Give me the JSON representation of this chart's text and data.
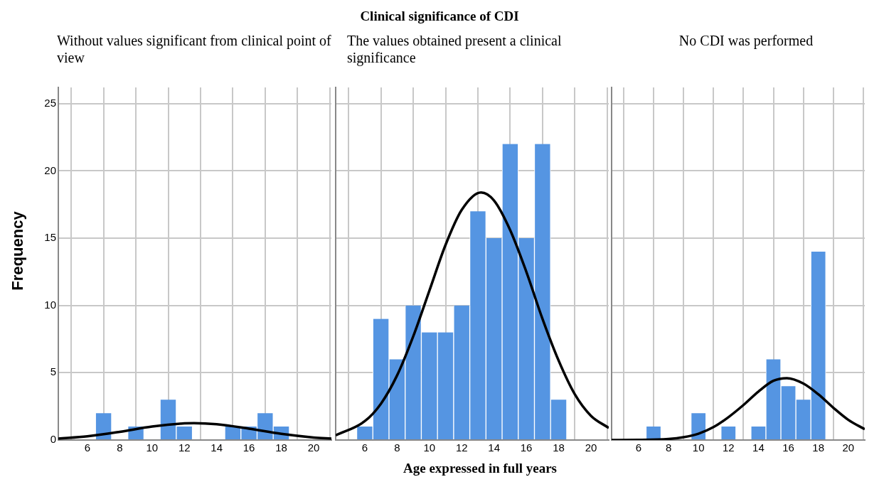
{
  "chart_data": [
    {
      "type": "histogram",
      "subtitle": "Without values significant from clinical point of view",
      "ylabel": "Frequency",
      "bins": [
        5.5,
        6.5,
        7.5,
        8.5,
        9.5,
        10.5,
        11.5,
        12.5,
        13.5,
        14.5,
        15.5,
        16.5,
        17.5,
        18.5
      ],
      "xlim": [
        4.2,
        21.1
      ],
      "xticks": [
        6,
        8,
        10,
        12,
        14,
        16,
        18,
        20
      ],
      "ylim": [
        0,
        26.2
      ],
      "yticks": [
        0,
        5,
        10,
        15,
        20,
        25
      ],
      "grid": true,
      "series": [
        {
          "color": "#5595e2",
          "values": [
            0,
            2,
            0,
            1,
            0,
            3,
            1,
            0,
            0,
            1,
            1,
            2,
            1
          ]
        },
        {
          "type": "line",
          "color": "#000000",
          "x": [
            4.2,
            6,
            8,
            10,
            12,
            12.6,
            14,
            16,
            18,
            20,
            21.1
          ],
          "values": [
            0.11,
            0.28,
            0.61,
            1.0,
            1.24,
            1.26,
            1.18,
            0.85,
            0.46,
            0.19,
            0.1
          ]
        }
      ]
    },
    {
      "type": "histogram",
      "title": "Clinical significance of CDI",
      "subtitle": "The values obtained present a clinical significance",
      "xlabel": "Age expressed in full years",
      "bins": [
        5.5,
        6.5,
        7.5,
        8.5,
        9.5,
        10.5,
        11.5,
        12.5,
        13.5,
        14.5,
        15.5,
        16.5,
        17.5,
        18.5
      ],
      "xlim": [
        4.2,
        21.1
      ],
      "xticks": [
        6,
        8,
        10,
        12,
        14,
        16,
        18,
        20
      ],
      "ylim": [
        0,
        26.2
      ],
      "yticks": [
        0,
        5,
        10,
        15,
        20,
        25
      ],
      "grid": true,
      "tick_labels": "x",
      "series": [
        {
          "color": "#5595e2",
          "values": [
            1,
            9,
            6,
            10,
            8,
            8,
            10,
            17,
            15,
            22,
            15,
            22,
            3
          ]
        },
        {
          "type": "line",
          "color": "#000000",
          "x": [
            4.2,
            6,
            7,
            8,
            9,
            10,
            11,
            12,
            13.2,
            14,
            15,
            16,
            17,
            18,
            19,
            20,
            21.1
          ],
          "values": [
            0.35,
            1.4,
            2.7,
            4.8,
            7.7,
            11.1,
            14.5,
            17.1,
            18.4,
            17.8,
            15.6,
            12.5,
            9.0,
            5.9,
            3.4,
            1.8,
            0.9
          ]
        }
      ]
    },
    {
      "type": "histogram",
      "subtitle": "No CDI was performed",
      "bins": [
        5.5,
        6.5,
        7.5,
        8.5,
        9.5,
        10.5,
        11.5,
        12.5,
        13.5,
        14.5,
        15.5,
        16.5,
        17.5,
        18.5
      ],
      "xlim": [
        4.2,
        21.1
      ],
      "xticks": [
        6,
        8,
        10,
        12,
        14,
        16,
        18,
        20
      ],
      "ylim": [
        0,
        26.2
      ],
      "yticks": [
        0,
        5,
        10,
        15,
        20,
        25
      ],
      "grid": true,
      "tick_labels": "x",
      "series": [
        {
          "color": "#5595e2",
          "values": [
            0,
            1,
            0,
            0,
            2,
            0,
            1,
            0,
            1,
            6,
            4,
            3,
            14
          ]
        },
        {
          "type": "line",
          "color": "#000000",
          "x": [
            4.2,
            6,
            8,
            9,
            10,
            11,
            12,
            13,
            14,
            15,
            15.9,
            17,
            18,
            19,
            20,
            21.1
          ],
          "values": [
            0,
            0.01,
            0.08,
            0.21,
            0.47,
            0.96,
            1.7,
            2.6,
            3.6,
            4.4,
            4.6,
            4.2,
            3.4,
            2.4,
            1.5,
            0.8
          ]
        }
      ]
    }
  ]
}
